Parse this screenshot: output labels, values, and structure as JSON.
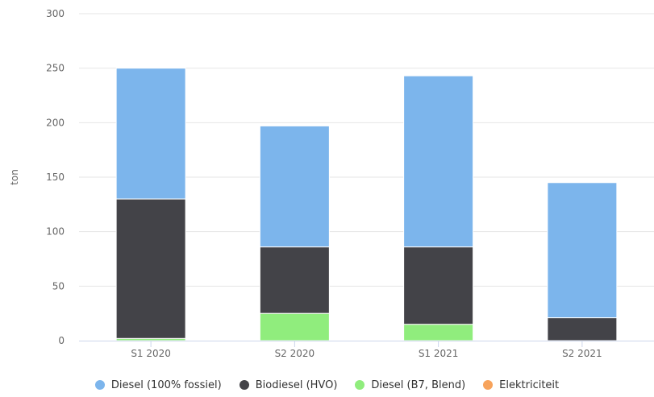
{
  "chart_data": {
    "type": "bar",
    "stacked": true,
    "categories": [
      "S1 2020",
      "S2 2020",
      "S1 2021",
      "S2 2021"
    ],
    "ylabel": "ton",
    "ylim": [
      0,
      300
    ],
    "yticks": [
      0,
      50,
      100,
      150,
      200,
      250,
      300
    ],
    "grid": true,
    "legend_position": "bottom",
    "series": [
      {
        "name": "Diesel (B7, Blend)",
        "color": "#90ed7d",
        "values": [
          2,
          25,
          15,
          0
        ]
      },
      {
        "name": "Biodiesel (HVO)",
        "color": "#434348",
        "values": [
          128,
          61,
          71,
          21
        ]
      },
      {
        "name": "Diesel (100% fossiel)",
        "color": "#7cb5ec",
        "values": [
          120,
          111,
          157,
          124
        ]
      },
      {
        "name": "Elektriciteit",
        "color": "#f7a35c",
        "values": [
          0,
          0,
          0,
          0
        ]
      }
    ],
    "legend_order": [
      "Diesel (100% fossiel)",
      "Biodiesel (HVO)",
      "Diesel (B7, Blend)",
      "Elektriciteit"
    ]
  }
}
